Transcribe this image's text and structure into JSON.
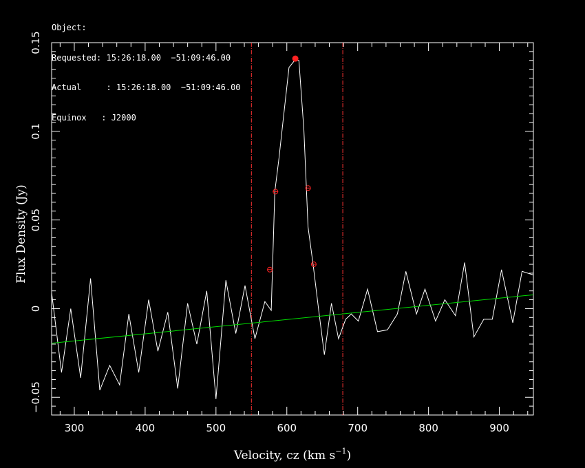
{
  "header": {
    "lines": [
      "Object:",
      "Requested: 15:26:18.00  −51:09:46.00",
      "Actual     : 15:26:18.00  −51:09:46.00",
      "Equinox   : J2000"
    ]
  },
  "chart_data": {
    "type": "line",
    "xlabel_main": "Velocity, cz (km s",
    "xlabel_sup": "−1",
    "xlabel_close": ")",
    "ylabel": "Flux Density (Jy)",
    "xlim": [
      268,
      948
    ],
    "ylim": [
      -0.06,
      0.15
    ],
    "x_ticks": [
      300,
      400,
      500,
      600,
      700,
      800,
      900
    ],
    "x_tick_labels": [
      "300",
      "400",
      "500",
      "600",
      "700",
      "800",
      "900"
    ],
    "y_ticks": [
      -0.05,
      0,
      0.05,
      0.1,
      0.15
    ],
    "y_tick_labels": [
      "−0.05",
      "0",
      "0.05",
      "0.1",
      "0.15"
    ],
    "colors": {
      "spectrum": "#ffffff",
      "baseline": "#00dd00",
      "window": "#ff3333",
      "marker": "#ff2222"
    },
    "series": [
      {
        "x": [
          268,
          282,
          295,
          309,
          323,
          336,
          350,
          364,
          377,
          391,
          405,
          418,
          432,
          446,
          460,
          473,
          487,
          500,
          514,
          528,
          541,
          555,
          569,
          578,
          583,
          589,
          595,
          603,
          611,
          617,
          624,
          630,
          637,
          645,
          653,
          663,
          673,
          683,
          691,
          701,
          714,
          728,
          742,
          756,
          768,
          783,
          795,
          810,
          823,
          838,
          851,
          864,
          878,
          890,
          903,
          919,
          932,
          940,
          948
        ],
        "y": [
          0.009,
          -0.036,
          0.0,
          -0.039,
          0.017,
          -0.046,
          -0.032,
          -0.043,
          -0.003,
          -0.036,
          0.005,
          -0.024,
          -0.002,
          -0.045,
          0.003,
          -0.02,
          0.01,
          -0.051,
          0.016,
          -0.014,
          0.013,
          -0.017,
          0.004,
          -0.001,
          0.066,
          0.085,
          0.107,
          0.136,
          0.14,
          0.14,
          0.101,
          0.046,
          0.025,
          -0.001,
          -0.026,
          0.003,
          -0.017,
          -0.006,
          -0.003,
          -0.007,
          0.011,
          -0.013,
          -0.012,
          -0.003,
          0.021,
          -0.003,
          0.011,
          -0.007,
          0.005,
          -0.004,
          0.026,
          -0.016,
          -0.006,
          -0.006,
          0.022,
          -0.008,
          0.021,
          0.02,
          0.019
        ]
      },
      {
        "x": [
          268,
          948
        ],
        "y": [
          -0.0195,
          0.0078
        ]
      }
    ],
    "window_lines_x": [
      550,
      679
    ],
    "peak_marker": {
      "x": 612,
      "y": 0.141
    },
    "width_markers": [
      {
        "x": 576,
        "y": 0.022
      },
      {
        "x": 584,
        "y": 0.066
      },
      {
        "x": 630,
        "y": 0.068
      },
      {
        "x": 638,
        "y": 0.025
      }
    ]
  }
}
